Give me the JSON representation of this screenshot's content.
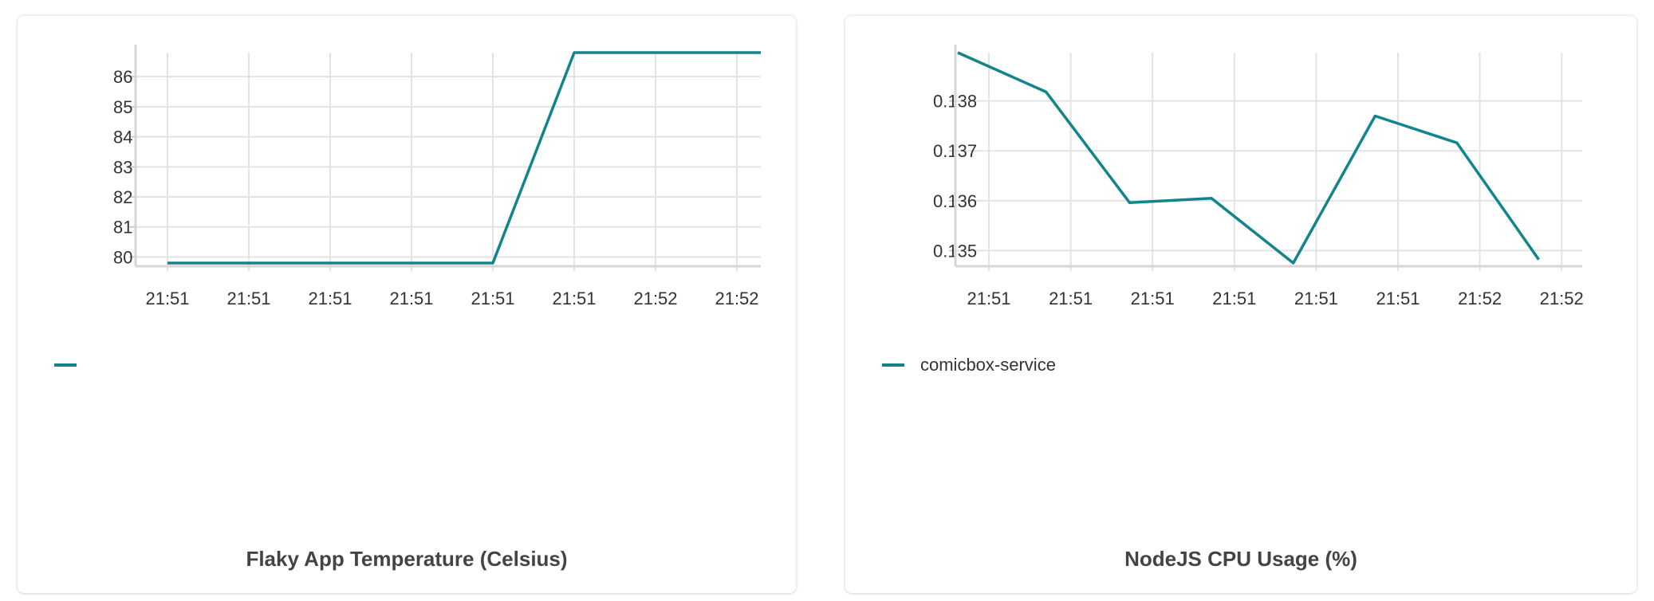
{
  "charts": [
    {
      "title": "Flaky App Temperature (Celsius)",
      "legend_label": "",
      "color": "#12858c"
    },
    {
      "title": "NodeJS CPU Usage (%)",
      "legend_label": "comicbox-service",
      "color": "#12858c"
    }
  ],
  "chart_data": [
    {
      "type": "line",
      "title": "Flaky App Temperature (Celsius)",
      "xlabel": "",
      "ylabel": "",
      "x_tick_labels": [
        "21:51",
        "21:51",
        "21:51",
        "21:51",
        "21:51",
        "21:51",
        "21:52",
        "21:52"
      ],
      "y_ticks": [
        80,
        81,
        82,
        83,
        84,
        85,
        86
      ],
      "ylim": [
        79.8,
        86.8
      ],
      "grid": true,
      "legend": "bottom-left",
      "series": [
        {
          "name": "",
          "color": "#12858c",
          "x": [
            0,
            1,
            2,
            3,
            4,
            5,
            6,
            7,
            7.3
          ],
          "values": [
            79.8,
            79.8,
            79.8,
            79.8,
            79.8,
            86.8,
            86.8,
            86.8,
            86.8
          ]
        }
      ]
    },
    {
      "type": "line",
      "title": "NodeJS CPU Usage (%)",
      "xlabel": "",
      "ylabel": "",
      "x_tick_labels": [
        "21:51",
        "21:51",
        "21:51",
        "21:51",
        "21:51",
        "21:51",
        "21:52",
        "21:52"
      ],
      "y_ticks": [
        0.135,
        0.136,
        0.137,
        0.138
      ],
      "ylim": [
        0.13475,
        0.13897
      ],
      "grid": true,
      "legend": "bottom-left",
      "series": [
        {
          "name": "comicbox-service",
          "color": "#12858c",
          "x": [
            -0.38,
            0.7,
            1.72,
            2.72,
            3.72,
            4.72,
            5.72,
            6.72
          ],
          "values": [
            0.13897,
            0.13818,
            0.13596,
            0.13605,
            0.13475,
            0.1377,
            0.13716,
            0.13482
          ]
        }
      ]
    }
  ]
}
